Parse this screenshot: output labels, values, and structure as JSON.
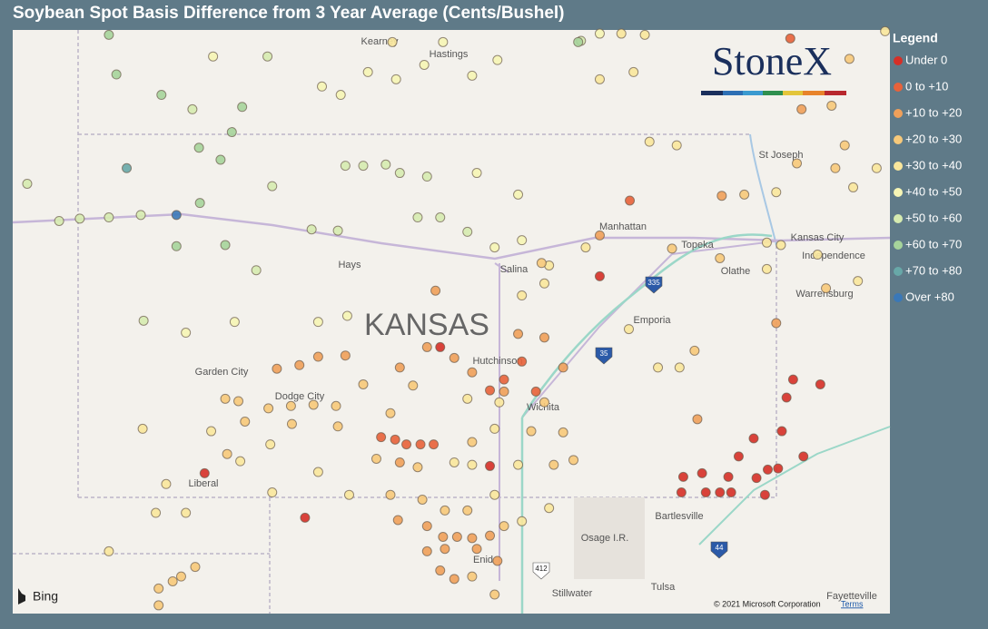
{
  "header": {
    "title": "Soybean Spot Basis Difference from 3 Year Average (Cents/Bushel)"
  },
  "legend": {
    "title": "Legend",
    "entries": [
      {
        "label": "Under 0",
        "color": "#d62f27"
      },
      {
        "label": "0 to +10",
        "color": "#e8623a"
      },
      {
        "label": "+10 to +20",
        "color": "#f0a05a"
      },
      {
        "label": "+20 to +30",
        "color": "#f7c97a"
      },
      {
        "label": "+30 to +40",
        "color": "#fae79c"
      },
      {
        "label": "+40 to +50",
        "color": "#f6f5b5"
      },
      {
        "label": "+50 to +60",
        "color": "#d6ebb0"
      },
      {
        "label": "+60 to +70",
        "color": "#a6d49b"
      },
      {
        "label": "+70 to +80",
        "color": "#68a8a8"
      },
      {
        "label": "Over +80",
        "color": "#3a78b8"
      }
    ]
  },
  "map": {
    "logo": "StoneX",
    "provider": "Bing",
    "copyright": "© 2021 Microsoft Corporation",
    "terms": "Terms",
    "places": [
      "Kearney",
      "Hastings",
      "St Joseph",
      "Manhattan",
      "Topeka",
      "Kansas City",
      "Independence",
      "Olathe",
      "Warrensburg",
      "Hays",
      "Salina",
      "KANSAS",
      "Emporia",
      "Hutchinson",
      "Garden City",
      "Dodge City",
      "Wichita",
      "Liberal",
      "Bartlesville",
      "Osage I.R.",
      "Enid",
      "Tulsa",
      "Stillwater",
      "Fayetteville"
    ],
    "shields": [
      "335",
      "35",
      "412",
      "44"
    ],
    "points": [
      [
        -101.58,
        40.84,
        7
      ],
      [
        -101.5,
        40.51,
        7
      ],
      [
        -101.02,
        40.34,
        7
      ],
      [
        -100.69,
        40.22,
        6
      ],
      [
        -100.16,
        40.24,
        7
      ],
      [
        -100.27,
        40.03,
        7
      ],
      [
        -100.62,
        39.9,
        7
      ],
      [
        -100.39,
        39.8,
        7
      ],
      [
        -101.39,
        39.73,
        8
      ],
      [
        -102.45,
        39.6,
        6
      ],
      [
        -102.11,
        39.29,
        6
      ],
      [
        -101.89,
        39.31,
        6
      ],
      [
        -101.58,
        39.32,
        6
      ],
      [
        -101.24,
        39.34,
        6
      ],
      [
        -100.86,
        39.34,
        9
      ],
      [
        -100.61,
        39.44,
        7
      ],
      [
        -100.86,
        39.08,
        7
      ],
      [
        -100.34,
        39.09,
        7
      ],
      [
        -100.01,
        38.88,
        6
      ],
      [
        -100.47,
        40.66,
        5
      ],
      [
        -99.89,
        40.66,
        6
      ],
      [
        -99.31,
        40.41,
        5
      ],
      [
        -99.11,
        40.34,
        5
      ],
      [
        -98.82,
        40.53,
        5
      ],
      [
        -98.52,
        40.47,
        5
      ],
      [
        -98.22,
        40.59,
        5
      ],
      [
        -97.71,
        40.5,
        5
      ],
      [
        -97.44,
        40.63,
        5
      ],
      [
        -98.02,
        40.78,
        5
      ],
      [
        -98.56,
        40.78,
        4
      ],
      [
        -96.55,
        40.79,
        6
      ],
      [
        -96.35,
        40.47,
        4
      ],
      [
        -95.99,
        40.53,
        4
      ],
      [
        -99.06,
        39.75,
        6
      ],
      [
        -98.87,
        39.75,
        6
      ],
      [
        -98.63,
        39.76,
        6
      ],
      [
        -98.48,
        39.69,
        6
      ],
      [
        -98.19,
        39.66,
        6
      ],
      [
        -97.66,
        39.69,
        5
      ],
      [
        -97.22,
        39.51,
        5
      ],
      [
        -99.84,
        39.58,
        6
      ],
      [
        -99.42,
        39.22,
        6
      ],
      [
        -99.14,
        39.21,
        6
      ],
      [
        -98.29,
        39.32,
        6
      ],
      [
        -98.05,
        39.32,
        6
      ],
      [
        -97.76,
        39.2,
        6
      ],
      [
        -97.47,
        39.07,
        5
      ],
      [
        -97.18,
        39.13,
        5
      ],
      [
        -96.89,
        38.92,
        4
      ],
      [
        -96.5,
        39.07,
        4
      ],
      [
        -96.35,
        39.17,
        2
      ],
      [
        -95.82,
        39.95,
        4
      ],
      [
        -95.53,
        39.92,
        4
      ],
      [
        -96.03,
        39.46,
        1
      ],
      [
        -95.58,
        39.06,
        3
      ],
      [
        -95.07,
        38.98,
        3
      ],
      [
        -95.05,
        39.5,
        2
      ],
      [
        -94.81,
        39.51,
        3
      ],
      [
        -94.47,
        39.53,
        4
      ],
      [
        -94.25,
        39.77,
        3
      ],
      [
        -93.84,
        39.73,
        3
      ],
      [
        -93.4,
        39.73,
        4
      ],
      [
        -93.65,
        39.57,
        4
      ],
      [
        -94.32,
        40.81,
        1
      ],
      [
        -93.69,
        40.64,
        3
      ],
      [
        -94.2,
        40.22,
        2
      ],
      [
        -93.88,
        40.25,
        3
      ],
      [
        -93.74,
        39.92,
        3
      ],
      [
        -93.31,
        40.87,
        4
      ],
      [
        -94.57,
        39.11,
        4
      ],
      [
        -94.42,
        39.09,
        4
      ],
      [
        -94.03,
        39.01,
        4
      ],
      [
        -94.57,
        38.89,
        4
      ],
      [
        -93.94,
        38.73,
        3
      ],
      [
        -93.6,
        38.79,
        4
      ],
      [
        -96.35,
        38.83,
        0
      ],
      [
        -96.97,
        38.94,
        3
      ],
      [
        -96.94,
        38.77,
        4
      ],
      [
        -97.18,
        38.67,
        4
      ],
      [
        -101.21,
        38.46,
        6
      ],
      [
        -100.24,
        38.45,
        5
      ],
      [
        -99.35,
        38.45,
        5
      ],
      [
        -99.04,
        38.5,
        5
      ],
      [
        -100.76,
        38.36,
        5
      ],
      [
        -98.1,
        38.71,
        2
      ],
      [
        -98.05,
        38.24,
        0
      ],
      [
        -98.19,
        38.24,
        2
      ],
      [
        -99.35,
        38.16,
        2
      ],
      [
        -99.55,
        38.09,
        2
      ],
      [
        -99.79,
        38.06,
        2
      ],
      [
        -99.06,
        38.17,
        2
      ],
      [
        -98.48,
        38.07,
        2
      ],
      [
        -97.9,
        38.15,
        2
      ],
      [
        -97.71,
        38.03,
        2
      ],
      [
        -97.37,
        37.97,
        1
      ],
      [
        -97.18,
        38.12,
        1
      ],
      [
        -96.74,
        38.07,
        2
      ],
      [
        -96.94,
        38.32,
        2
      ],
      [
        -97.22,
        38.35,
        2
      ],
      [
        -97.52,
        37.88,
        1
      ],
      [
        -97.37,
        37.87,
        2
      ],
      [
        -97.03,
        37.87,
        1
      ],
      [
        -100.34,
        37.81,
        3
      ],
      [
        -100.2,
        37.79,
        3
      ],
      [
        -99.88,
        37.73,
        3
      ],
      [
        -99.64,
        37.75,
        3
      ],
      [
        -99.4,
        37.76,
        3
      ],
      [
        -99.16,
        37.75,
        3
      ],
      [
        -98.87,
        37.93,
        3
      ],
      [
        -98.58,
        37.69,
        3
      ],
      [
        -98.34,
        37.92,
        3
      ],
      [
        -97.76,
        37.81,
        4
      ],
      [
        -97.42,
        37.78,
        4
      ],
      [
        -96.94,
        37.78,
        3
      ],
      [
        -101.22,
        37.56,
        4
      ],
      [
        -100.49,
        37.54,
        4
      ],
      [
        -100.13,
        37.62,
        3
      ],
      [
        -99.63,
        37.6,
        3
      ],
      [
        -99.14,
        37.58,
        3
      ],
      [
        -98.68,
        37.49,
        1
      ],
      [
        -98.53,
        37.47,
        1
      ],
      [
        -98.41,
        37.43,
        1
      ],
      [
        -98.26,
        37.43,
        1
      ],
      [
        -98.12,
        37.43,
        1
      ],
      [
        -97.71,
        37.45,
        3
      ],
      [
        -97.47,
        37.56,
        4
      ],
      [
        -97.08,
        37.54,
        3
      ],
      [
        -96.74,
        37.53,
        3
      ],
      [
        -100.32,
        37.35,
        3
      ],
      [
        -100.56,
        37.19,
        0
      ],
      [
        -100.97,
        37.1,
        4
      ],
      [
        -100.18,
        37.29,
        4
      ],
      [
        -99.86,
        37.43,
        4
      ],
      [
        -99.35,
        37.2,
        4
      ],
      [
        -98.73,
        37.31,
        3
      ],
      [
        -98.48,
        37.28,
        2
      ],
      [
        -98.29,
        37.24,
        3
      ],
      [
        -97.9,
        37.28,
        4
      ],
      [
        -97.71,
        37.26,
        4
      ],
      [
        -97.52,
        37.25,
        0
      ],
      [
        -97.22,
        37.26,
        4
      ],
      [
        -96.84,
        37.26,
        3
      ],
      [
        -96.63,
        37.3,
        3
      ],
      [
        -100.76,
        36.86,
        4
      ],
      [
        -101.08,
        36.86,
        4
      ],
      [
        -99.84,
        37.03,
        4
      ],
      [
        -99.49,
        36.82,
        0
      ],
      [
        -99.02,
        37.01,
        4
      ],
      [
        -98.58,
        37.01,
        3
      ],
      [
        -98.24,
        36.97,
        3
      ],
      [
        -98.0,
        36.88,
        3
      ],
      [
        -97.76,
        36.88,
        3
      ],
      [
        -97.47,
        37.01,
        4
      ],
      [
        -97.18,
        36.79,
        4
      ],
      [
        -96.89,
        36.9,
        4
      ],
      [
        -98.5,
        36.8,
        2
      ],
      [
        -98.19,
        36.75,
        2
      ],
      [
        -98.02,
        36.66,
        2
      ],
      [
        -97.87,
        36.66,
        2
      ],
      [
        -97.71,
        36.65,
        2
      ],
      [
        -97.52,
        36.67,
        2
      ],
      [
        -97.37,
        36.75,
        3
      ],
      [
        -98.19,
        36.54,
        2
      ],
      [
        -98.0,
        36.56,
        2
      ],
      [
        -97.66,
        36.56,
        2
      ],
      [
        -98.05,
        36.38,
        2
      ],
      [
        -97.9,
        36.31,
        2
      ],
      [
        -97.44,
        36.46,
        2
      ],
      [
        -97.47,
        36.18,
        3
      ],
      [
        -97.71,
        36.33,
        3
      ],
      [
        -101.58,
        36.54,
        4
      ],
      [
        -101.05,
        36.23,
        3
      ],
      [
        -100.9,
        36.29,
        3
      ],
      [
        -100.81,
        36.33,
        3
      ],
      [
        -100.66,
        36.41,
        3
      ],
      [
        -101.05,
        36.09,
        3
      ],
      [
        -95.31,
        37.64,
        2
      ],
      [
        -95.34,
        38.21,
        3
      ],
      [
        -95.5,
        38.07,
        4
      ],
      [
        -95.73,
        38.07,
        4
      ],
      [
        -96.04,
        38.39,
        4
      ],
      [
        -94.29,
        37.97,
        0
      ],
      [
        -94.0,
        37.93,
        0
      ],
      [
        -94.36,
        37.82,
        0
      ],
      [
        -94.41,
        37.54,
        0
      ],
      [
        -94.71,
        37.48,
        0
      ],
      [
        -94.18,
        37.33,
        0
      ],
      [
        -94.45,
        37.23,
        0
      ],
      [
        -94.56,
        37.22,
        0
      ],
      [
        -94.68,
        37.15,
        0
      ],
      [
        -94.87,
        37.33,
        0
      ],
      [
        -95.46,
        37.16,
        0
      ],
      [
        -95.26,
        37.19,
        0
      ],
      [
        -94.98,
        37.16,
        0
      ],
      [
        -95.48,
        37.03,
        0
      ],
      [
        -95.22,
        37.03,
        0
      ],
      [
        -95.07,
        37.03,
        0
      ],
      [
        -94.95,
        37.03,
        0
      ],
      [
        -94.59,
        37.01,
        0
      ],
      [
        -94.47,
        38.44,
        2
      ],
      [
        -96.58,
        40.78,
        7
      ],
      [
        -96.35,
        40.85,
        5
      ],
      [
        -96.12,
        40.85,
        4
      ],
      [
        -95.87,
        40.84,
        4
      ]
    ]
  }
}
